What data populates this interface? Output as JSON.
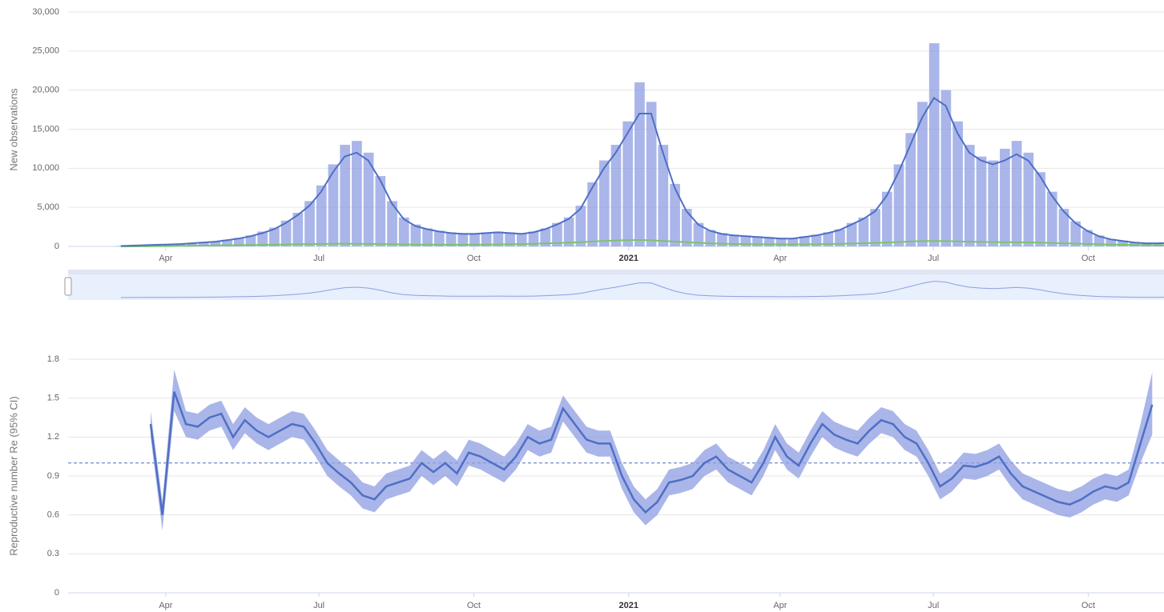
{
  "chart_data": [
    {
      "type": "bar",
      "ylabel": "New observations",
      "xlim": [
        "2020-02-03",
        "2021-11-15"
      ],
      "xticks": [
        {
          "value": "2020-04-01",
          "label": "Apr"
        },
        {
          "value": "2020-07-01",
          "label": "Jul"
        },
        {
          "value": "2020-10-01",
          "label": "Oct"
        },
        {
          "value": "2021-01-01",
          "label": "2021"
        },
        {
          "value": "2021-04-01",
          "label": "Apr"
        },
        {
          "value": "2021-07-01",
          "label": "Jul"
        },
        {
          "value": "2021-10-01",
          "label": "Oct"
        }
      ],
      "ylim": [
        0,
        30000
      ],
      "yticks": [
        0,
        {
          "value": 5000,
          "label": "5,000"
        },
        {
          "value": 10000,
          "label": "10,000"
        },
        {
          "value": 15000,
          "label": "15,000"
        },
        {
          "value": 20000,
          "label": "20,000"
        },
        {
          "value": 25000,
          "label": "25,000"
        },
        {
          "value": 30000,
          "label": "30,000"
        }
      ],
      "grid": true,
      "x": [
        "2020-03-02",
        "2020-03-09",
        "2020-03-16",
        "2020-03-23",
        "2020-03-30",
        "2020-04-06",
        "2020-04-13",
        "2020-04-20",
        "2020-04-27",
        "2020-05-04",
        "2020-05-11",
        "2020-05-18",
        "2020-05-25",
        "2020-06-01",
        "2020-06-08",
        "2020-06-15",
        "2020-06-22",
        "2020-06-29",
        "2020-07-06",
        "2020-07-13",
        "2020-07-20",
        "2020-07-27",
        "2020-08-03",
        "2020-08-10",
        "2020-08-17",
        "2020-08-24",
        "2020-08-31",
        "2020-09-07",
        "2020-09-14",
        "2020-09-21",
        "2020-09-28",
        "2020-10-05",
        "2020-10-12",
        "2020-10-19",
        "2020-10-26",
        "2020-11-02",
        "2020-11-09",
        "2020-11-16",
        "2020-11-23",
        "2020-11-30",
        "2020-12-07",
        "2020-12-14",
        "2020-12-21",
        "2020-12-28",
        "2021-01-04",
        "2021-01-11",
        "2021-01-18",
        "2021-01-25",
        "2021-02-01",
        "2021-02-08",
        "2021-02-15",
        "2021-02-22",
        "2021-03-01",
        "2021-03-08",
        "2021-03-15",
        "2021-03-22",
        "2021-03-29",
        "2021-04-05",
        "2021-04-12",
        "2021-04-19",
        "2021-04-26",
        "2021-05-03",
        "2021-05-10",
        "2021-05-17",
        "2021-05-24",
        "2021-05-31",
        "2021-06-07",
        "2021-06-14",
        "2021-06-21",
        "2021-06-28",
        "2021-07-05",
        "2021-07-12",
        "2021-07-19",
        "2021-07-26",
        "2021-08-02",
        "2021-08-09",
        "2021-08-16",
        "2021-08-23",
        "2021-08-30",
        "2021-09-06",
        "2021-09-13",
        "2021-09-20",
        "2021-09-27",
        "2021-10-04",
        "2021-10-11",
        "2021-10-18",
        "2021-10-25",
        "2021-11-01",
        "2021-11-08",
        "2021-11-15"
      ],
      "series": [
        {
          "color": "#8e9ee2",
          "values": [
            60,
            110,
            160,
            210,
            260,
            320,
            420,
            520,
            650,
            850,
            1100,
            1400,
            1900,
            2400,
            3300,
            4300,
            5800,
            7800,
            10500,
            13000,
            13500,
            12000,
            9000,
            5800,
            3700,
            2800,
            2300,
            2000,
            1800,
            1700,
            1700,
            1800,
            1900,
            1800,
            1700,
            1900,
            2300,
            3000,
            3700,
            5200,
            8200,
            11000,
            13000,
            16000,
            21000,
            18500,
            13000,
            8000,
            4800,
            3000,
            2100,
            1700,
            1500,
            1400,
            1300,
            1200,
            1100,
            1050,
            1300,
            1500,
            1800,
            2200,
            3000,
            3700,
            4800,
            7000,
            10500,
            14500,
            18500,
            26000,
            20000,
            16000,
            13000,
            11500,
            11000,
            12500,
            13500,
            12000,
            9500,
            7000,
            4800,
            3200,
            2100,
            1400,
            950,
            750,
            550,
            420,
            420,
            480
          ]
        },
        {
          "color": "#4f6fc4",
          "values": [
            50,
            100,
            150,
            200,
            250,
            300,
            400,
            500,
            600,
            800,
            1000,
            1300,
            1700,
            2200,
            3000,
            4000,
            5200,
            7000,
            9500,
            11500,
            12000,
            11000,
            8500,
            5500,
            3500,
            2600,
            2200,
            1900,
            1700,
            1600,
            1600,
            1700,
            1800,
            1700,
            1600,
            1800,
            2200,
            2800,
            3500,
            4800,
            7500,
            10000,
            12000,
            14500,
            17000,
            17000,
            12000,
            7500,
            4500,
            2800,
            2000,
            1600,
            1400,
            1300,
            1200,
            1100,
            1000,
            1000,
            1200,
            1400,
            1700,
            2100,
            2800,
            3500,
            4500,
            6500,
            9500,
            13000,
            16500,
            19000,
            18000,
            14500,
            12000,
            11000,
            10500,
            11000,
            11800,
            11000,
            9000,
            6500,
            4500,
            3000,
            2000,
            1300,
            900,
            700,
            500,
            400,
            400,
            450
          ]
        },
        {
          "color": "#7cc46b",
          "values": [
            0,
            0,
            10,
            20,
            40,
            60,
            80,
            100,
            120,
            140,
            160,
            180,
            200,
            220,
            250,
            280,
            300,
            320,
            340,
            350,
            340,
            320,
            300,
            280,
            260,
            240,
            230,
            220,
            210,
            210,
            220,
            240,
            260,
            280,
            300,
            340,
            380,
            420,
            480,
            540,
            620,
            700,
            760,
            800,
            820,
            780,
            700,
            620,
            540,
            460,
            400,
            350,
            320,
            300,
            280,
            270,
            260,
            260,
            270,
            290,
            310,
            340,
            370,
            410,
            450,
            500,
            560,
            620,
            680,
            700,
            680,
            640,
            600,
            570,
            550,
            540,
            530,
            510,
            480,
            440,
            400,
            360,
            320,
            280,
            240,
            210,
            180,
            160,
            150,
            150
          ]
        }
      ]
    },
    {
      "type": "line",
      "ylabel": "Reproductive number Re (95% CI)",
      "xlim": [
        "2020-02-03",
        "2021-11-15"
      ],
      "xticks": [
        {
          "value": "2020-04-01",
          "label": "Apr"
        },
        {
          "value": "2020-07-01",
          "label": "Jul"
        },
        {
          "value": "2020-10-01",
          "label": "Oct"
        },
        {
          "value": "2021-01-01",
          "label": "2021"
        },
        {
          "value": "2021-04-01",
          "label": "Apr"
        },
        {
          "value": "2021-07-01",
          "label": "Jul"
        },
        {
          "value": "2021-10-01",
          "label": "Oct"
        }
      ],
      "ylim": [
        0,
        1.8
      ],
      "yticks": [
        0,
        0.3,
        0.6,
        0.9,
        1.2,
        1.5,
        1.8
      ],
      "grid": true,
      "reference_line": 1,
      "color": "#4f6fc4",
      "band_color": "#8e9ee2",
      "x": [
        "2020-03-23",
        "2020-03-30",
        "2020-04-06",
        "2020-04-13",
        "2020-04-20",
        "2020-04-27",
        "2020-05-04",
        "2020-05-11",
        "2020-05-18",
        "2020-05-25",
        "2020-06-01",
        "2020-06-08",
        "2020-06-15",
        "2020-06-22",
        "2020-06-29",
        "2020-07-06",
        "2020-07-13",
        "2020-07-20",
        "2020-07-27",
        "2020-08-03",
        "2020-08-10",
        "2020-08-17",
        "2020-08-24",
        "2020-08-31",
        "2020-09-07",
        "2020-09-14",
        "2020-09-21",
        "2020-09-28",
        "2020-10-05",
        "2020-10-12",
        "2020-10-19",
        "2020-10-26",
        "2020-11-02",
        "2020-11-09",
        "2020-11-16",
        "2020-11-23",
        "2020-11-30",
        "2020-12-07",
        "2020-12-14",
        "2020-12-21",
        "2020-12-28",
        "2021-01-04",
        "2021-01-11",
        "2021-01-18",
        "2021-01-25",
        "2021-02-01",
        "2021-02-08",
        "2021-02-15",
        "2021-02-22",
        "2021-03-01",
        "2021-03-08",
        "2021-03-15",
        "2021-03-22",
        "2021-03-29",
        "2021-04-05",
        "2021-04-12",
        "2021-04-19",
        "2021-04-26",
        "2021-05-03",
        "2021-05-10",
        "2021-05-17",
        "2021-05-24",
        "2021-05-31",
        "2021-06-07",
        "2021-06-14",
        "2021-06-21",
        "2021-06-28",
        "2021-07-05",
        "2021-07-12",
        "2021-07-19",
        "2021-07-26",
        "2021-08-02",
        "2021-08-09",
        "2021-08-16",
        "2021-08-23",
        "2021-08-30",
        "2021-09-06",
        "2021-09-13",
        "2021-09-20",
        "2021-09-27",
        "2021-10-04",
        "2021-10-11",
        "2021-10-18",
        "2021-10-25",
        "2021-11-01",
        "2021-11-08"
      ],
      "values": [
        1.3,
        0.6,
        1.55,
        1.3,
        1.28,
        1.35,
        1.38,
        1.2,
        1.33,
        1.25,
        1.2,
        1.25,
        1.3,
        1.28,
        1.15,
        1.0,
        0.92,
        0.85,
        0.75,
        0.72,
        0.82,
        0.85,
        0.88,
        1.0,
        0.93,
        1.0,
        0.92,
        1.08,
        1.05,
        1.0,
        0.95,
        1.05,
        1.2,
        1.15,
        1.18,
        1.42,
        1.3,
        1.18,
        1.15,
        1.15,
        0.9,
        0.72,
        0.62,
        0.7,
        0.85,
        0.87,
        0.9,
        1.0,
        1.05,
        0.95,
        0.9,
        0.85,
        1.0,
        1.2,
        1.05,
        0.98,
        1.15,
        1.3,
        1.22,
        1.18,
        1.15,
        1.25,
        1.33,
        1.3,
        1.2,
        1.15,
        1.0,
        0.82,
        0.88,
        0.98,
        0.97,
        1.0,
        1.05,
        0.92,
        0.82,
        0.78,
        0.74,
        0.7,
        0.68,
        0.72,
        0.78,
        0.82,
        0.8,
        0.85,
        1.15,
        1.45
      ],
      "lower": [
        1.2,
        0.48,
        1.4,
        1.2,
        1.18,
        1.25,
        1.28,
        1.1,
        1.23,
        1.15,
        1.1,
        1.15,
        1.2,
        1.18,
        1.05,
        0.9,
        0.82,
        0.75,
        0.65,
        0.62,
        0.72,
        0.75,
        0.78,
        0.9,
        0.83,
        0.9,
        0.82,
        0.98,
        0.95,
        0.9,
        0.85,
        0.95,
        1.1,
        1.05,
        1.08,
        1.32,
        1.2,
        1.08,
        1.05,
        1.05,
        0.8,
        0.62,
        0.52,
        0.6,
        0.75,
        0.77,
        0.8,
        0.9,
        0.95,
        0.85,
        0.8,
        0.75,
        0.9,
        1.1,
        0.95,
        0.88,
        1.05,
        1.2,
        1.12,
        1.08,
        1.05,
        1.15,
        1.23,
        1.2,
        1.1,
        1.05,
        0.9,
        0.72,
        0.78,
        0.88,
        0.87,
        0.9,
        0.95,
        0.82,
        0.72,
        0.68,
        0.64,
        0.6,
        0.58,
        0.62,
        0.68,
        0.72,
        0.7,
        0.75,
        1.0,
        1.22
      ],
      "upper": [
        1.4,
        0.7,
        1.72,
        1.4,
        1.38,
        1.45,
        1.48,
        1.3,
        1.43,
        1.35,
        1.3,
        1.35,
        1.4,
        1.38,
        1.25,
        1.1,
        1.02,
        0.95,
        0.85,
        0.82,
        0.92,
        0.95,
        0.98,
        1.1,
        1.03,
        1.1,
        1.02,
        1.18,
        1.15,
        1.1,
        1.05,
        1.15,
        1.3,
        1.25,
        1.28,
        1.52,
        1.4,
        1.28,
        1.25,
        1.25,
        1.0,
        0.82,
        0.72,
        0.8,
        0.95,
        0.97,
        1.0,
        1.1,
        1.15,
        1.05,
        1.0,
        0.95,
        1.1,
        1.3,
        1.15,
        1.08,
        1.25,
        1.4,
        1.32,
        1.28,
        1.25,
        1.35,
        1.43,
        1.4,
        1.3,
        1.25,
        1.1,
        0.92,
        0.98,
        1.08,
        1.07,
        1.1,
        1.15,
        1.02,
        0.92,
        0.88,
        0.84,
        0.8,
        0.78,
        0.82,
        0.88,
        0.92,
        0.9,
        0.95,
        1.3,
        1.7
      ]
    }
  ]
}
